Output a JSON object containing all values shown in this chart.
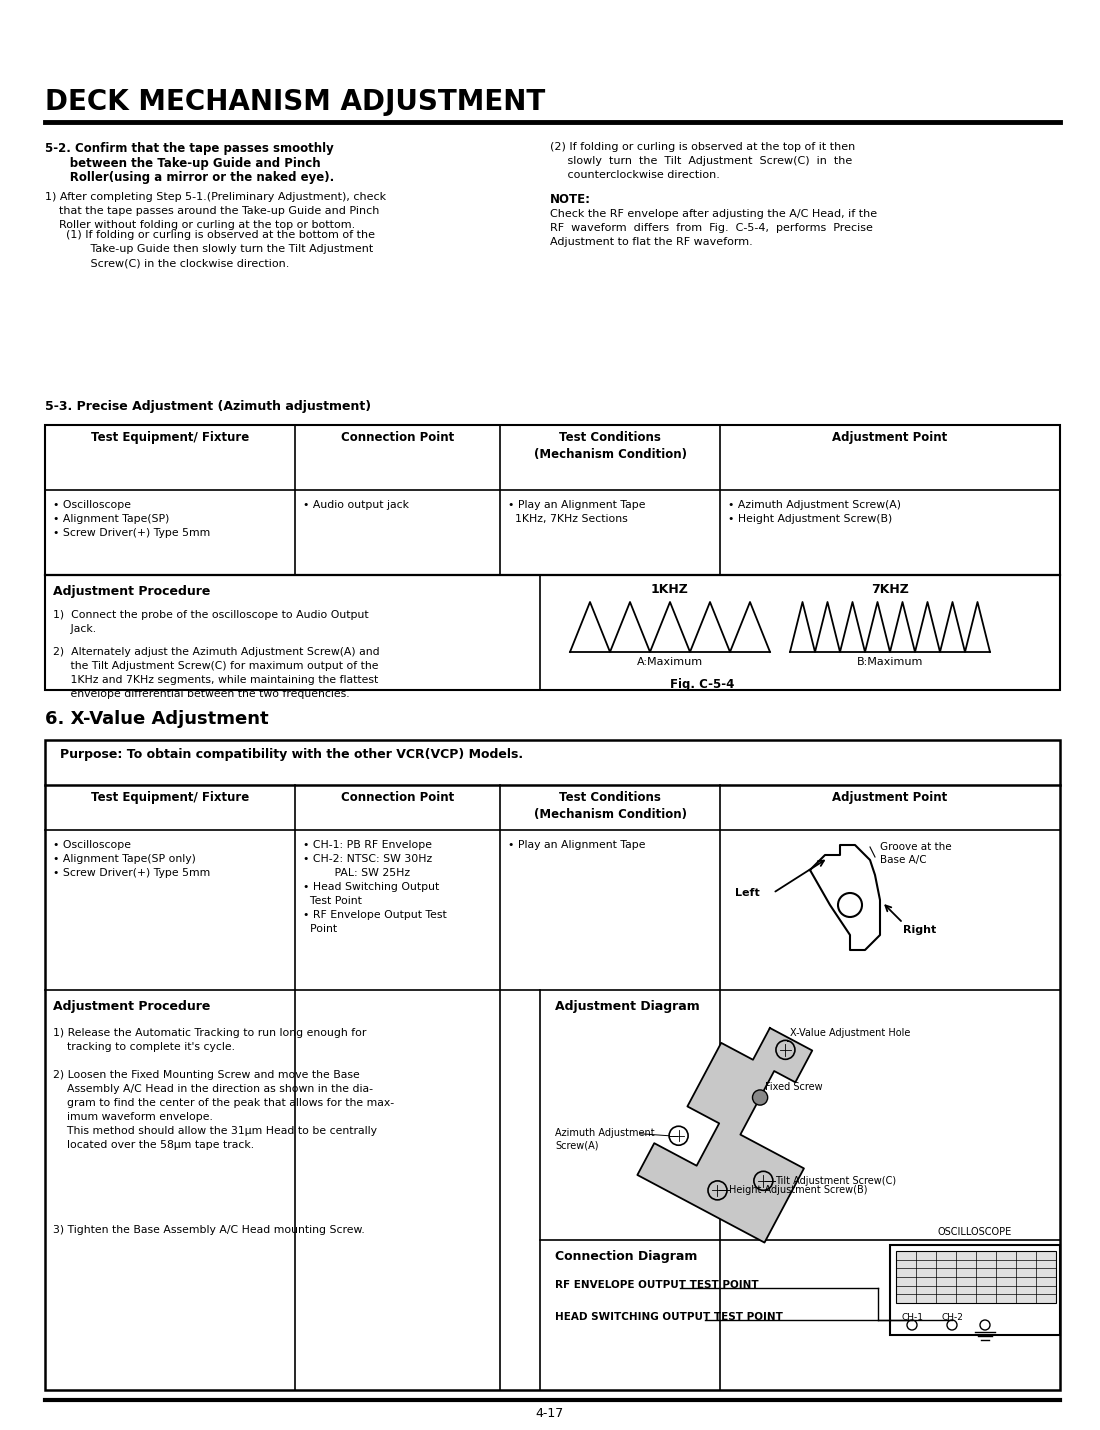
{
  "title": "DECK MECHANISM ADJUSTMENT",
  "bg_color": "#ffffff",
  "page_number": "4-17",
  "section_52_title_line1": "5-2. Confirm that the tape passes smoothly",
  "section_52_title_line2": "      between the Take-up Guide and Pinch",
  "section_52_title_line3": "      Roller(using a mirror or the naked eye).",
  "section_52_body1": "1) After completing Step 5-1.(Preliminary Adjustment), check\n    that the tape passes around the Take-up Guide and Pinch\n    Roller without folding or curling at the top or bottom.",
  "section_52_body2": "      (1) If folding or curling is observed at the bottom of the\n             Take-up Guide then slowly turn the Tilt Adjustment\n             Screw(C) in the clockwise direction.",
  "col2_52": "(2) If folding or curling is observed at the top of it then\n     slowly  turn  the  Tilt  Adjustment  Screw(C)  in  the\n     counterclockwise direction.",
  "note_title": "NOTE:",
  "note_body": "Check the RF envelope after adjusting the A/C Head, if the\nRF  waveform  differs  from  Fig.  C-5-4,  performs  Precise\nAdjustment to flat the RF waveform.",
  "section_53_title": "5-3. Precise Adjustment (Azimuth adjustment)",
  "t1_headers": [
    "Test Equipment/ Fixture",
    "Connection Point",
    "Test Conditions\n(Mechanism Condition)",
    "Adjustment Point"
  ],
  "t1_row": [
    "• Oscilloscope\n• Alignment Tape(SP)\n• Screw Driver(+) Type 5mm",
    "• Audio output jack",
    "• Play an Alignment Tape\n  1KHz, 7KHz Sections",
    "• Azimuth Adjustment Screw(A)\n• Height Adjustment Screw(B)"
  ],
  "adj_proc1_title": "Adjustment Procedure",
  "adj_proc1_1": "1)  Connect the probe of the oscilloscope to Audio Output\n     Jack.",
  "adj_proc1_2": "2)  Alternately adjust the Azimuth Adjustment Screw(A) and\n     the Tilt Adjustment Screw(C) for maximum output of the\n     1KHz and 7KHz segments, while maintaining the flattest\n     envelope differential between the two frequencies.",
  "wf1_label": "1KHZ",
  "wf7_label": "7KHZ",
  "wfa_label": "A:Maximum",
  "wfb_label": "B:Maximum",
  "fig_label": "Fig. C-5-4",
  "section_6_title": "6. X-Value Adjustment",
  "purpose": "Purpose: To obtain compatibility with the other VCR(VCP) Models.",
  "t2_headers": [
    "Test Equipment/ Fixture",
    "Connection Point",
    "Test Conditions\n(Mechanism Condition)",
    "Adjustment Point"
  ],
  "t2_col1": "• Oscilloscope\n• Alignment Tape(SP only)\n• Screw Driver(+) Type 5mm",
  "t2_col2": "• CH-1: PB RF Envelope\n• CH-2: NTSC: SW 30Hz\n         PAL: SW 25Hz\n• Head Switching Output\n  Test Point\n• RF Envelope Output Test\n  Point",
  "t2_col3": "• Play an Alignment Tape",
  "groove_label": "Groove at the\nBase A/C",
  "left_label": "Left",
  "right_label": "Right",
  "adj_proc2_title": "Adjustment Procedure",
  "adj_proc2_1": "1) Release the Automatic Tracking to run long enough for\n    tracking to complete it's cycle.",
  "adj_proc2_2": "2) Loosen the Fixed Mounting Screw and move the Base\n    Assembly A/C Head in the direction as shown in the dia-\n    gram to find the center of the peak that allows for the max-\n    imum waveform envelope.\n    This method should allow the 31μm Head to be centrally\n    located over the 58μm tape track.",
  "adj_proc2_3": "3) Tighten the Base Assembly A/C Head mounting Screw.",
  "adj_diag_title": "Adjustment Diagram",
  "lbl_xhole": "X-Value Adjustment Hole",
  "lbl_fixedscrew": "Fixed Screw",
  "lbl_azimuth": "Azimuth Adjustment\nScrew(A)",
  "lbl_tilt": "Tilt Adjustment Screw(C)",
  "lbl_height": "Height Adjustment Screw(B)",
  "conn_diag_title": "Connection Diagram",
  "rf_label": "RF ENVELOPE OUTPUT TEST POINT",
  "head_label": "HEAD SWITCHING OUTPUT TEST POINT",
  "osc_label": "OSCILLOSCOPE",
  "ch1_label": "CH-1",
  "ch2_label": "CH-2"
}
